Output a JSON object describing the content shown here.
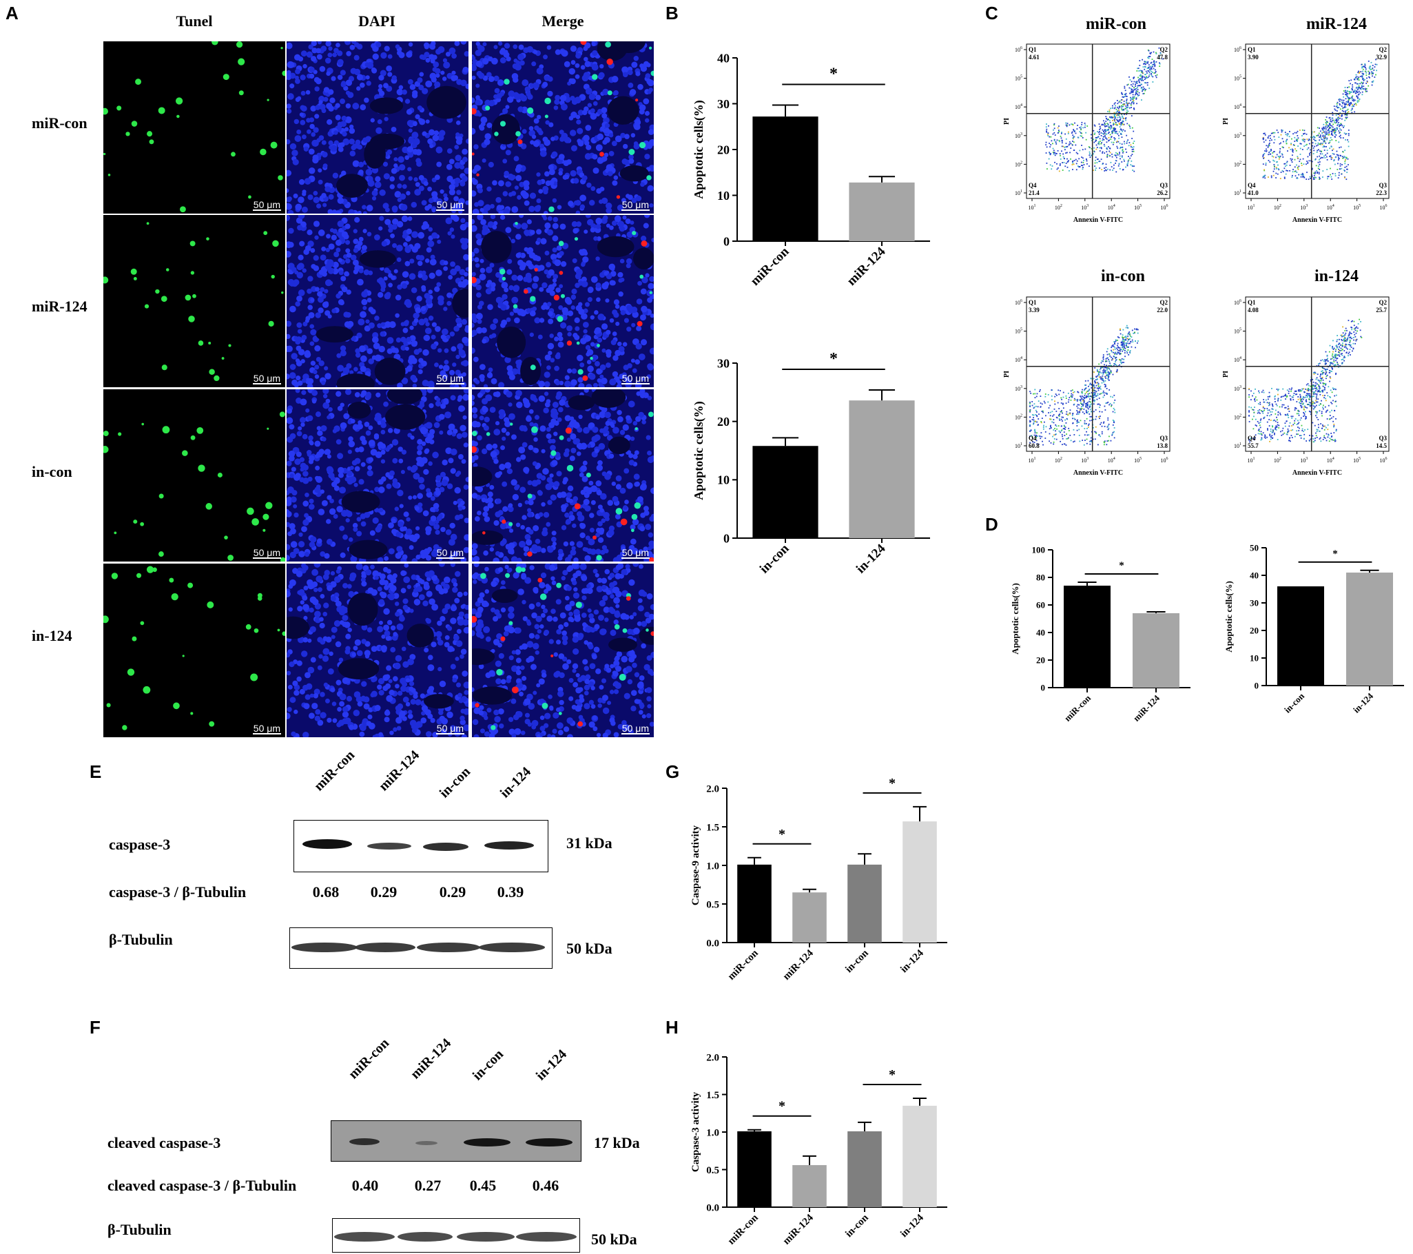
{
  "panels": {
    "A": "A",
    "B": "B",
    "C": "C",
    "D": "D",
    "E": "E",
    "F": "F",
    "G": "G",
    "H": "H"
  },
  "panel_a": {
    "columns": [
      "Tunel",
      "DAPI",
      "Merge"
    ],
    "rows": [
      "miR-con",
      "miR-124",
      "in-con",
      "in-124"
    ],
    "scale_bar": "50 μm"
  },
  "panel_c": {
    "plots": [
      {
        "title": "miR-con",
        "q1": "4.61",
        "q2": "47.8",
        "q3": "26.2",
        "q4": "21.4"
      },
      {
        "title": "miR-124",
        "q1": "3.90",
        "q2": "32.9",
        "q3": "22.3",
        "q4": "41.0"
      },
      {
        "title": "in-con",
        "q1": "3.39",
        "q2": "22.0",
        "q3": "13.8",
        "q4": "60.8"
      },
      {
        "title": "in-124",
        "q1": "4.08",
        "q2": "25.7",
        "q3": "14.5",
        "q4": "55.7"
      }
    ],
    "xlabel": "Annexin V-FITC",
    "ylabel": "PI",
    "quad_labels": {
      "q1": "Q1",
      "q2": "Q2",
      "q3": "Q3",
      "q4": "Q4"
    }
  },
  "panel_e": {
    "lanes": [
      "miR-con",
      "miR-124",
      "in-con",
      "in-124"
    ],
    "target": "caspase-3",
    "ratio_label": "caspase-3 / β-Tubulin",
    "ratios": [
      "0.68",
      "0.29",
      "0.29",
      "0.39"
    ],
    "loading": "β-Tubulin",
    "target_kda": "31  kDa",
    "loading_kda": "50  kDa"
  },
  "panel_f": {
    "lanes": [
      "miR-con",
      "miR-124",
      "in-con",
      "in-124"
    ],
    "target": "cleaved caspase-3",
    "ratio_label": "cleaved caspase-3 / β-Tubulin",
    "ratios": [
      "0.40",
      "0.27",
      "0.45",
      "0.46"
    ],
    "loading": "β-Tubulin",
    "target_kda": "17  kDa",
    "loading_kda": "50  kDa"
  },
  "chart_data": [
    {
      "id": "B1",
      "type": "bar",
      "categories": [
        "miR-con",
        "miR-124"
      ],
      "values": [
        27.2,
        12.8
      ],
      "errors": [
        2.5,
        1.3
      ],
      "ylabel": "Apoptotic cells(%)",
      "ylim": [
        0,
        40
      ],
      "yticks": [
        0,
        10,
        20,
        30,
        40
      ],
      "colors": [
        "#000000",
        "#a6a6a6"
      ],
      "sig": [
        {
          "from": 0,
          "to": 1,
          "label": "*"
        }
      ]
    },
    {
      "id": "B2",
      "type": "bar",
      "categories": [
        "in-con",
        "in-124"
      ],
      "values": [
        15.8,
        23.6
      ],
      "errors": [
        1.4,
        1.8
      ],
      "ylabel": "Apoptotic cells(%)",
      "ylim": [
        0,
        30
      ],
      "yticks": [
        0,
        10,
        20,
        30
      ],
      "colors": [
        "#000000",
        "#a6a6a6"
      ],
      "sig": [
        {
          "from": 0,
          "to": 1,
          "label": "*"
        }
      ]
    },
    {
      "id": "D1",
      "type": "bar",
      "categories": [
        "miR-con",
        "miR-124"
      ],
      "values": [
        74,
        54
      ],
      "errors": [
        2.5,
        1.0
      ],
      "ylabel": "Apoptotic cells(%)",
      "ylim": [
        0,
        100
      ],
      "yticks": [
        0,
        20,
        40,
        60,
        80,
        100
      ],
      "colors": [
        "#000000",
        "#a6a6a6"
      ],
      "sig": [
        {
          "from": 0,
          "to": 1,
          "label": "*"
        }
      ]
    },
    {
      "id": "D2",
      "type": "bar",
      "categories": [
        "in-con",
        "in-124"
      ],
      "values": [
        36,
        41
      ],
      "errors": [
        0,
        0.8
      ],
      "ylabel": "Apoptotic cells(%)",
      "ylim": [
        0,
        50
      ],
      "yticks": [
        0,
        10,
        20,
        30,
        40,
        50
      ],
      "colors": [
        "#000000",
        "#a6a6a6"
      ],
      "sig": [
        {
          "from": 0,
          "to": 1,
          "label": "*"
        }
      ]
    },
    {
      "id": "G",
      "type": "bar",
      "categories": [
        "miR-con",
        "miR-124",
        "in-con",
        "in-124"
      ],
      "values": [
        1.01,
        0.65,
        1.01,
        1.57
      ],
      "errors": [
        0.09,
        0.04,
        0.14,
        0.19
      ],
      "ylabel": "Caspase-9 activity",
      "ylim": [
        0,
        2.0
      ],
      "yticks": [
        0.0,
        0.5,
        1.0,
        1.5,
        2.0
      ],
      "colors": [
        "#000000",
        "#a6a6a6",
        "#7f7f7f",
        "#d9d9d9"
      ],
      "sig": [
        {
          "from": 0,
          "to": 1,
          "label": "*"
        },
        {
          "from": 2,
          "to": 3,
          "label": "*"
        }
      ]
    },
    {
      "id": "H",
      "type": "bar",
      "categories": [
        "miR-con",
        "miR-124",
        "in-con",
        "in-124"
      ],
      "values": [
        1.01,
        0.56,
        1.01,
        1.35
      ],
      "errors": [
        0.02,
        0.12,
        0.12,
        0.1
      ],
      "ylabel": "Caspase-3 activity",
      "ylim": [
        0,
        2.0
      ],
      "yticks": [
        0.0,
        0.5,
        1.0,
        1.5,
        2.0
      ],
      "colors": [
        "#000000",
        "#a6a6a6",
        "#7f7f7f",
        "#d9d9d9"
      ],
      "sig": [
        {
          "from": 0,
          "to": 1,
          "label": "*"
        },
        {
          "from": 2,
          "to": 3,
          "label": "*"
        }
      ]
    }
  ]
}
